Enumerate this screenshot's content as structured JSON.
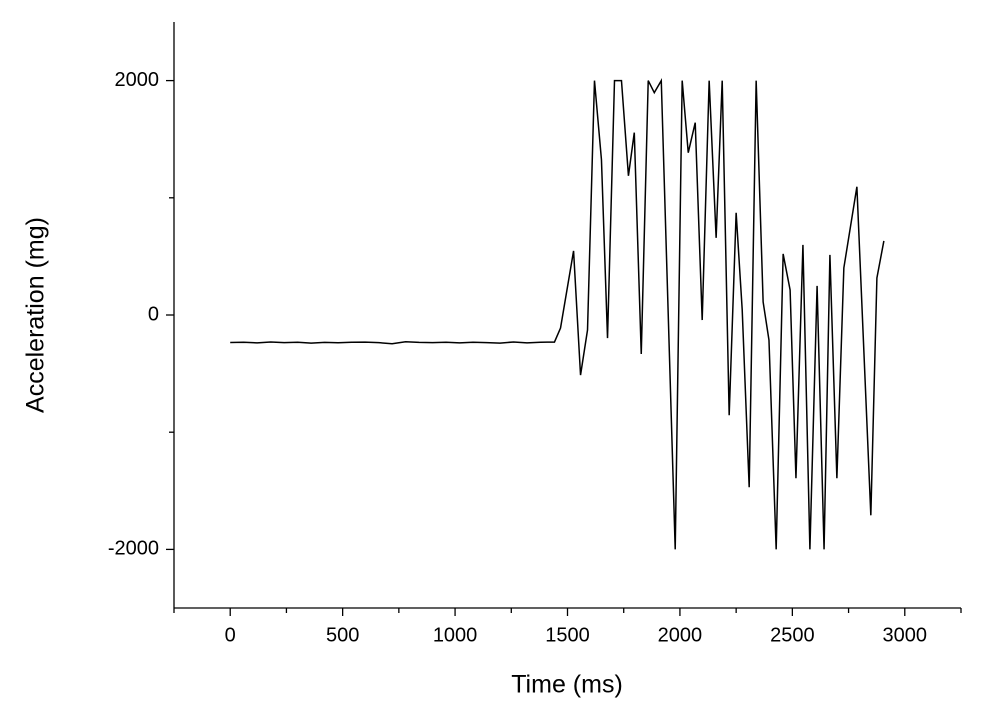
{
  "chart_data": {
    "type": "line",
    "x_label": "Time (ms)",
    "y_label": "Acceleration (mg)",
    "color": "#000000",
    "xlim": [
      -250,
      3250
    ],
    "xticks": [
      0,
      500,
      1000,
      1500,
      2000,
      2500,
      3000
    ],
    "xminor": [
      -250,
      250,
      750,
      1250,
      1750,
      2250,
      2750,
      3250
    ],
    "ylim": [
      -2500,
      2500
    ],
    "yticks": [
      -2000,
      0,
      2000
    ],
    "yminor": [
      -1000,
      1000
    ],
    "grid": false,
    "x": [
      0,
      60,
      120,
      180,
      240,
      300,
      360,
      420,
      480,
      540,
      600,
      660,
      720,
      780,
      840,
      900,
      960,
      1020,
      1080,
      1140,
      1200,
      1260,
      1320,
      1380,
      1410,
      1442,
      1469,
      1527,
      1558,
      1589,
      1620,
      1651,
      1678,
      1709,
      1740,
      1771,
      1797,
      1828,
      1859,
      1886,
      1917,
      1979,
      2010,
      2037,
      2068,
      2099,
      2130,
      2161,
      2188,
      2219,
      2250,
      2277,
      2308,
      2339,
      2370,
      2396,
      2428,
      2459,
      2490,
      2516,
      2547,
      2578,
      2610,
      2641,
      2667,
      2698,
      2729,
      2787,
      2849,
      2876,
      2907
    ],
    "values": [
      -235,
      -232,
      -238,
      -230,
      -236,
      -233,
      -240,
      -234,
      -237,
      -232,
      -231,
      -236,
      -245,
      -228,
      -234,
      -236,
      -233,
      -238,
      -232,
      -236,
      -240,
      -230,
      -238,
      -233,
      -231,
      -231,
      -111,
      547,
      -513,
      -128,
      2000,
      1325,
      -197,
      2000,
      2000,
      1188,
      1556,
      -333,
      2000,
      1897,
      2000,
      -2000,
      2000,
      1385,
      1641,
      -43,
      2000,
      658,
      2000,
      -855,
      872,
      43,
      -1470,
      2000,
      111,
      -214,
      -2000,
      521,
      214,
      -1393,
      598,
      -2000,
      248,
      -2000,
      513,
      -1393,
      402,
      1094,
      -1709,
      316,
      632
    ]
  }
}
